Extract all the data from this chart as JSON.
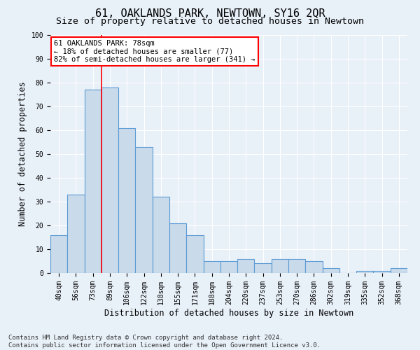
{
  "title": "61, OAKLANDS PARK, NEWTOWN, SY16 2QR",
  "subtitle": "Size of property relative to detached houses in Newtown",
  "xlabel": "Distribution of detached houses by size in Newtown",
  "ylabel": "Number of detached properties",
  "categories": [
    "40sqm",
    "56sqm",
    "73sqm",
    "89sqm",
    "106sqm",
    "122sqm",
    "138sqm",
    "155sqm",
    "171sqm",
    "188sqm",
    "204sqm",
    "220sqm",
    "237sqm",
    "253sqm",
    "270sqm",
    "286sqm",
    "302sqm",
    "319sqm",
    "335sqm",
    "352sqm",
    "368sqm"
  ],
  "values": [
    16,
    33,
    77,
    78,
    61,
    53,
    32,
    21,
    16,
    5,
    5,
    6,
    4,
    6,
    6,
    5,
    2,
    0,
    1,
    1,
    2
  ],
  "bar_color": "#c9daea",
  "bar_edgecolor": "#5b9bd5",
  "bar_linewidth": 0.8,
  "annotation_text_line1": "61 OAKLANDS PARK: 78sqm",
  "annotation_text_line2": "← 18% of detached houses are smaller (77)",
  "annotation_text_line3": "82% of semi-detached houses are larger (341) →",
  "annotation_box_color": "white",
  "annotation_box_edgecolor": "red",
  "vline_color": "red",
  "vline_x_index": 2.5,
  "ylim": [
    0,
    100
  ],
  "yticks": [
    0,
    10,
    20,
    30,
    40,
    50,
    60,
    70,
    80,
    90,
    100
  ],
  "background_color": "#e8f0f8",
  "grid_color": "white",
  "footer": "Contains HM Land Registry data © Crown copyright and database right 2024.\nContains public sector information licensed under the Open Government Licence v3.0.",
  "title_fontsize": 11,
  "subtitle_fontsize": 9.5,
  "axis_label_fontsize": 8.5,
  "tick_fontsize": 7,
  "footer_fontsize": 6.5,
  "annotation_fontsize": 7.5
}
